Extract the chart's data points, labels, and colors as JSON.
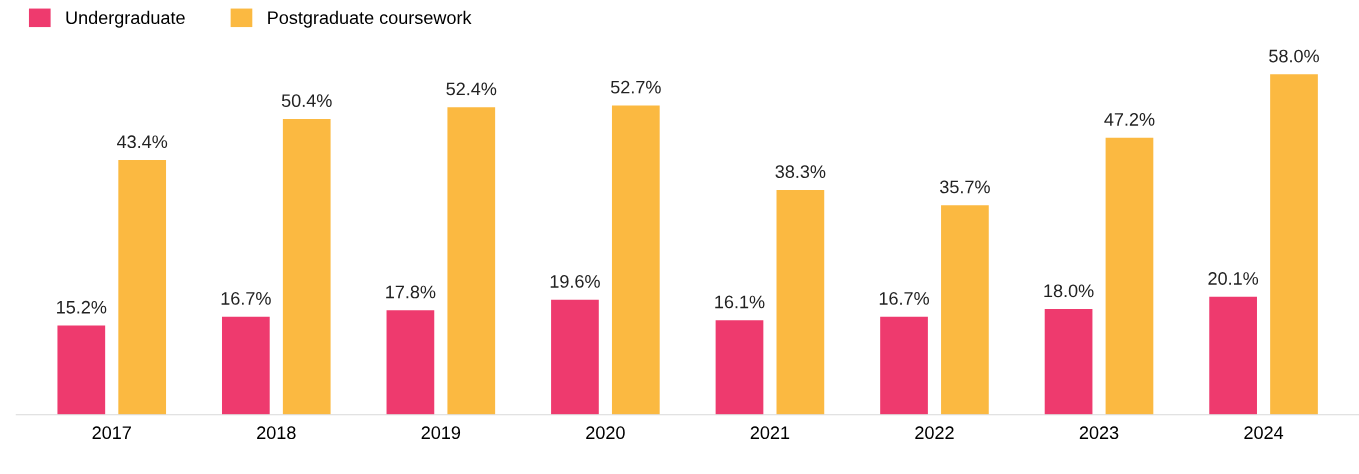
{
  "chart_data": {
    "type": "bar",
    "categories": [
      "2017",
      "2018",
      "2019",
      "2020",
      "2021",
      "2022",
      "2023",
      "2024"
    ],
    "series": [
      {
        "name": "Undergraduate",
        "color": "#ee3a6e",
        "values": [
          15.2,
          16.7,
          17.8,
          19.6,
          16.1,
          16.7,
          18.0,
          20.1
        ],
        "value_labels": [
          "15.2%",
          "16.7%",
          "17.8%",
          "19.6%",
          "16.1%",
          "16.7%",
          "18.0%",
          "20.1%"
        ]
      },
      {
        "name": "Postgraduate coursework",
        "color": "#fbb941",
        "values": [
          43.4,
          50.4,
          52.4,
          52.7,
          38.3,
          35.7,
          47.2,
          58.0
        ],
        "value_labels": [
          "43.4%",
          "50.4%",
          "52.4%",
          "52.7%",
          "38.3%",
          "35.7%",
          "47.2%",
          "58.0%"
        ]
      }
    ],
    "legend": "top left",
    "grid": false,
    "tick_labels": "x"
  }
}
